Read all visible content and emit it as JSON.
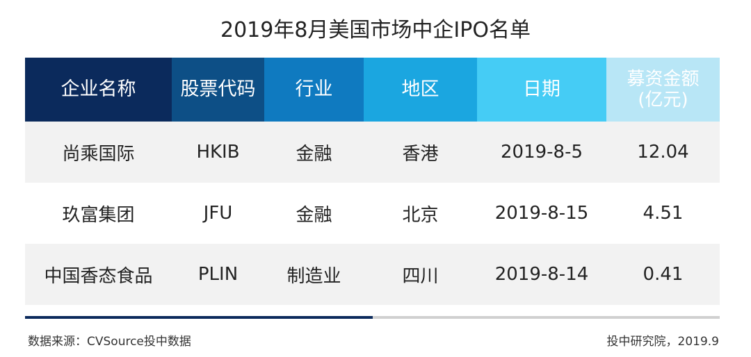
{
  "title": "2019年8月美国市场中企IPO名单",
  "headers": [
    "企业名称",
    "股票代码",
    "行业",
    "地区",
    "日期"
  ],
  "header_last": {
    "line1": "募资金额",
    "line2": "(亿元)"
  },
  "rows": [
    [
      "尚乘国际",
      "HKIB",
      "金融",
      "香港",
      "2019-8-5",
      "12.04"
    ],
    [
      "玖富集团",
      "JFU",
      "金融",
      "北京",
      "2019-8-15",
      "4.51"
    ],
    [
      "中国香态食品",
      "PLIN",
      "制造业",
      "四川",
      "2019-8-14",
      "0.41"
    ]
  ],
  "footer": {
    "source": "数据来源：CVSource投中数据",
    "credit": "投中研究院，2019.9"
  },
  "colors": {
    "header_1": "#0b2a5c",
    "header_2": "#0d4f86",
    "header_3": "#0f7ac0",
    "header_4": "#1ba6e0",
    "header_5": "#45ccf5",
    "header_6": "#b8e6f6"
  }
}
